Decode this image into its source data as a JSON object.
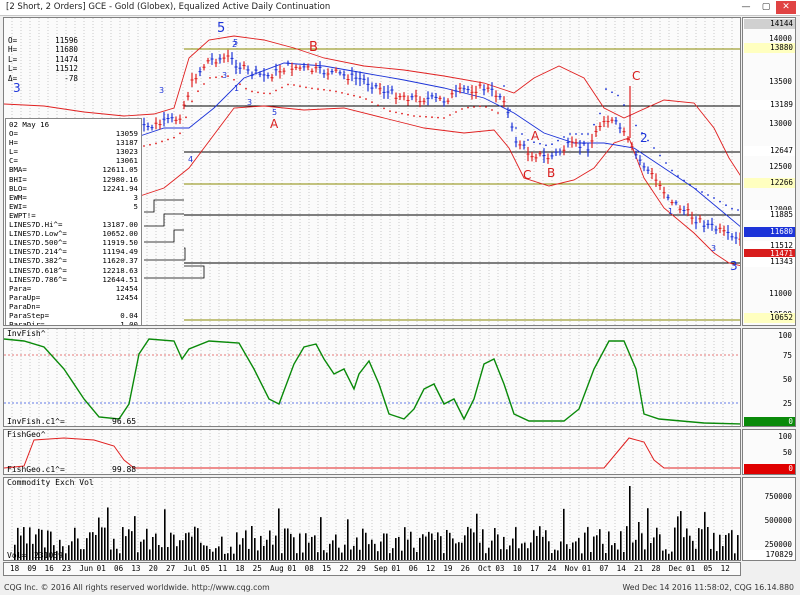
{
  "window": {
    "title": "[2 Short, 2 Orders]  GCE - Gold (Globex), Equalized Active Daily Continuation",
    "min": "—",
    "max": "▢",
    "close": "✕"
  },
  "quote": [
    {
      "k": "O=",
      "v": "11596"
    },
    {
      "k": "H=",
      "v": "11680"
    },
    {
      "k": "L=",
      "v": "11474"
    },
    {
      "k": "L=",
      "v": "11512"
    },
    {
      "k": "Δ=",
      "v": "-78"
    }
  ],
  "info": {
    "date": "02 May 16",
    "rows": [
      {
        "k": "O=",
        "v": "13059"
      },
      {
        "k": "H=",
        "v": "13187"
      },
      {
        "k": "L=",
        "v": "13023"
      },
      {
        "k": "C=",
        "v": "13061"
      },
      {
        "k": "BMA=",
        "v": "12611.05"
      },
      {
        "k": "BHI=",
        "v": "12980.16"
      },
      {
        "k": "BLO=",
        "v": "12241.94"
      },
      {
        "k": "EWM=",
        "v": "3"
      },
      {
        "k": "EWI=",
        "v": "5"
      },
      {
        "k": "EWPT!=",
        "v": ""
      },
      {
        "k": "LINES7D.Hi^=",
        "v": "13187.00"
      },
      {
        "k": "LINES7D.Low^=",
        "v": "10652.00"
      },
      {
        "k": "LINES7D.500^=",
        "v": "11919.50"
      },
      {
        "k": "LINES7D.214^=",
        "v": "11194.49"
      },
      {
        "k": "LINES7D.382^=",
        "v": "11620.37"
      },
      {
        "k": "LINES7D.618^=",
        "v": "12218.63"
      },
      {
        "k": "LINES7D.786^=",
        "v": "12644.51"
      },
      {
        "k": "Para=",
        "v": "12454"
      },
      {
        "k": "ParaUp=",
        "v": "12454"
      },
      {
        "k": "ParaDn=",
        "v": ""
      },
      {
        "k": "ParaStep=",
        "v": "0.04"
      },
      {
        "k": "ParaDir=",
        "v": "1.00"
      }
    ]
  },
  "price_scale": {
    "ticks": [
      "14000",
      "13500",
      "13000",
      "12500",
      "12000",
      "11500",
      "11000",
      "10500"
    ],
    "tags": [
      {
        "text": "14144",
        "bg": "#d0d0d0",
        "fg": "#000000"
      },
      {
        "text": "13880",
        "bg": "#ffffc0",
        "fg": "#000000"
      },
      {
        "text": "13189",
        "bg": "#ffffff",
        "fg": "#000000"
      },
      {
        "text": "12647",
        "bg": "#ffffff",
        "fg": "#000000"
      },
      {
        "text": "12266",
        "bg": "#ffffc0",
        "fg": "#000000"
      },
      {
        "text": "11885",
        "bg": "#ffffff",
        "fg": "#000000"
      },
      {
        "text": "11680",
        "bg": "#1c33d8",
        "fg": "#ffffff"
      },
      {
        "text": "11512",
        "bg": "#ffffff",
        "fg": "#000000"
      },
      {
        "text": "11471",
        "bg": "#d81c1c",
        "fg": "#ffffff"
      },
      {
        "text": "11343",
        "bg": "#ffffff",
        "fg": "#000000"
      },
      {
        "text": "10652",
        "bg": "#ffffc0",
        "fg": "#000000"
      }
    ]
  },
  "waves": [
    {
      "t": "5",
      "color": "#1c33d8"
    },
    {
      "t": "5",
      "color": "#1c33d8"
    },
    {
      "t": "3",
      "color": "#1c33d8"
    },
    {
      "t": "3",
      "color": "#1c33d8"
    },
    {
      "t": "3",
      "color": "#1c33d8"
    },
    {
      "t": "4",
      "color": "#1c33d8"
    },
    {
      "t": "1",
      "color": "#1c33d8"
    },
    {
      "t": "2",
      "color": "#1c33d8"
    },
    {
      "t": "3",
      "color": "#1c33d8"
    },
    {
      "t": "5",
      "color": "#1c33d8"
    },
    {
      "t": "B",
      "color": "#d81c1c"
    },
    {
      "t": "A",
      "color": "#d81c1c"
    },
    {
      "t": "A",
      "color": "#d81c1c"
    },
    {
      "t": "C",
      "color": "#d81c1c"
    },
    {
      "t": "B",
      "color": "#d81c1c"
    },
    {
      "t": "C",
      "color": "#d81c1c"
    },
    {
      "t": "2",
      "color": "#1c33d8"
    },
    {
      "t": "1",
      "color": "#1c33d8"
    },
    {
      "t": "3",
      "color": "#1c33d8"
    },
    {
      "t": "3 - 3",
      "color": "#1c33d8"
    }
  ],
  "invfish": {
    "title": "InvFish^",
    "value_label": "InvFish.c1^=",
    "value": "96.65",
    "ticks": [
      "100",
      "75",
      "50",
      "25"
    ],
    "tag": {
      "text": "0",
      "bg": "#0a8a0a",
      "fg": "#ffffff"
    }
  },
  "fishgeo": {
    "title": "FishGeo^",
    "value_label": "FishGeo.c1^=",
    "value": "99.88",
    "ticks": [
      "100",
      "50"
    ],
    "tag": {
      "text": "0",
      "bg": "#e00000",
      "fg": "#ffffff"
    }
  },
  "volume": {
    "title": "Commodity Exch Vol",
    "value_label": "Vol=",
    "value": "231059",
    "ticks": [
      "750000",
      "500000",
      "250000"
    ],
    "tag": {
      "text": "170829",
      "bg": "#ffffff",
      "fg": "#000000"
    }
  },
  "dates": [
    "18",
    "09",
    "16",
    "23",
    "Jun",
    "01",
    "06",
    "13",
    "20",
    "27",
    "Jul",
    "05",
    "11",
    "18",
    "25",
    "Aug",
    "01",
    "08",
    "15",
    "22",
    "29",
    "Sep",
    "01",
    "06",
    "12",
    "19",
    "26",
    "Oct",
    "03",
    "10",
    "17",
    "24",
    "Nov",
    "01",
    "07",
    "14",
    "21",
    "28",
    "Dec",
    "01",
    "05",
    "12"
  ],
  "footer": {
    "left": "CQG Inc. © 2016 All rights reserved worldwide. http://www.cqg.com",
    "right": "Wed Dec 14 2016 11:58:02, CQG 16.14.880"
  }
}
